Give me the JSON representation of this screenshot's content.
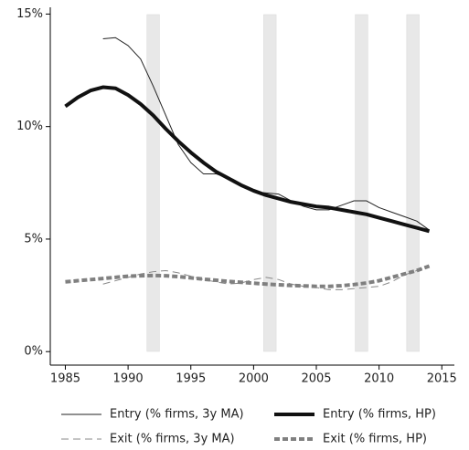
{
  "chart_data": {
    "type": "line",
    "x": [
      1985,
      1986,
      1987,
      1988,
      1989,
      1990,
      1991,
      1992,
      1993,
      1994,
      1995,
      1996,
      1997,
      1998,
      1999,
      2000,
      2001,
      2002,
      2003,
      2004,
      2005,
      2006,
      2007,
      2008,
      2009,
      2010,
      2011,
      2012,
      2013,
      2014
    ],
    "series": [
      {
        "name": "Entry (% firms, 3y MA)",
        "color": "#222222",
        "width": 1,
        "dash": "none",
        "values": [
          null,
          null,
          null,
          13.9,
          13.95,
          13.6,
          13.0,
          11.8,
          10.5,
          9.2,
          8.4,
          7.9,
          7.9,
          7.7,
          7.4,
          7.1,
          7.05,
          7.0,
          6.7,
          6.45,
          6.3,
          6.3,
          6.5,
          6.7,
          6.7,
          6.4,
          6.2,
          6.0,
          5.8,
          5.4
        ]
      },
      {
        "name": "Entry (% firms, HP)",
        "color": "#111111",
        "width": 4,
        "dash": "none",
        "values": [
          10.9,
          11.3,
          11.6,
          11.75,
          11.7,
          11.4,
          11.0,
          10.5,
          9.9,
          9.35,
          8.85,
          8.4,
          8.0,
          7.7,
          7.4,
          7.15,
          6.95,
          6.8,
          6.65,
          6.55,
          6.45,
          6.4,
          6.3,
          6.2,
          6.1,
          5.95,
          5.8,
          5.65,
          5.5,
          5.35
        ]
      },
      {
        "name": "Exit (% firms, 3y MA)",
        "color": "#888888",
        "width": 1,
        "dash": "8 5",
        "values": [
          null,
          null,
          null,
          3.0,
          3.15,
          3.3,
          3.45,
          3.55,
          3.6,
          3.5,
          3.35,
          3.2,
          3.1,
          3.0,
          3.05,
          3.2,
          3.3,
          3.2,
          3.0,
          2.9,
          2.85,
          2.75,
          2.75,
          2.8,
          2.85,
          2.9,
          3.1,
          3.4,
          3.6,
          3.8
        ]
      },
      {
        "name": "Exit (% firms, HP)",
        "color": "#808080",
        "width": 4,
        "dash": "6 3",
        "values": [
          3.1,
          3.15,
          3.2,
          3.25,
          3.3,
          3.35,
          3.37,
          3.38,
          3.37,
          3.33,
          3.28,
          3.22,
          3.17,
          3.12,
          3.08,
          3.04,
          3.0,
          2.97,
          2.94,
          2.92,
          2.9,
          2.9,
          2.93,
          2.98,
          3.05,
          3.15,
          3.3,
          3.45,
          3.6,
          3.8
        ]
      }
    ],
    "shaded_periods": [
      [
        1991.5,
        1992.5
      ],
      [
        2000.8,
        2001.8
      ],
      [
        2008.1,
        2009.1
      ],
      [
        2012.2,
        2013.2
      ]
    ],
    "shade_color": "#e8e8e8",
    "xlim": [
      1983.8,
      2016
    ],
    "xticks": [
      1985,
      1990,
      1995,
      2000,
      2005,
      2010,
      2015
    ],
    "ylim": [
      -0.6,
      15.3
    ],
    "yticks": [
      {
        "value": 0,
        "label": "0%"
      },
      {
        "value": 5,
        "label": "5%"
      },
      {
        "value": 10,
        "label": "10%"
      },
      {
        "value": 15,
        "label": "15%"
      }
    ]
  }
}
